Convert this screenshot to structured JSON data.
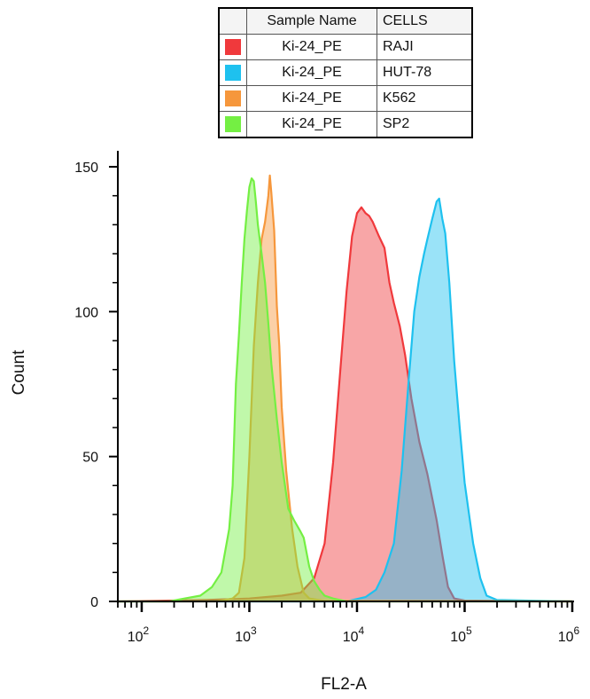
{
  "legend": {
    "header": {
      "sample": "Sample Name",
      "cells": "CELLS"
    },
    "rows": [
      {
        "sample": "Ki-24_PE",
        "cells": "RAJI",
        "color": "#f0393c"
      },
      {
        "sample": "Ki-24_PE",
        "cells": "HUT-78",
        "color": "#1ec1ef"
      },
      {
        "sample": "Ki-24_PE",
        "cells": "K562",
        "color": "#f6973c"
      },
      {
        "sample": "Ki-24_PE",
        "cells": "SP2",
        "color": "#74ef43"
      }
    ]
  },
  "chart_data": {
    "type": "area",
    "xlabel": "FL2-A",
    "ylabel": "Count",
    "x_scale": "log",
    "xlim": [
      60,
      1000000
    ],
    "ylim": [
      0,
      150
    ],
    "y_ticks": [
      "0",
      "50",
      "100",
      "150"
    ],
    "x_ticks": [
      {
        "base": "10",
        "exp": "2",
        "value": 100
      },
      {
        "base": "10",
        "exp": "3",
        "value": 1000
      },
      {
        "base": "10",
        "exp": "4",
        "value": 10000
      },
      {
        "base": "10",
        "exp": "5",
        "value": 100000
      },
      {
        "base": "10",
        "exp": "6",
        "value": 1000000
      }
    ],
    "series": [
      {
        "name": "RAJI",
        "color": "#f0393c",
        "points": [
          [
            60,
            0
          ],
          [
            400,
            0.5
          ],
          [
            1000,
            1
          ],
          [
            2000,
            2
          ],
          [
            3000,
            3
          ],
          [
            4000,
            8
          ],
          [
            5000,
            20
          ],
          [
            6000,
            48
          ],
          [
            7000,
            80
          ],
          [
            8000,
            107
          ],
          [
            9000,
            126
          ],
          [
            10000,
            134
          ],
          [
            11000,
            136
          ],
          [
            12000,
            134
          ],
          [
            13000,
            133
          ],
          [
            14000,
            131
          ],
          [
            16000,
            126
          ],
          [
            18000,
            122
          ],
          [
            20000,
            110
          ],
          [
            22000,
            103
          ],
          [
            25000,
            95
          ],
          [
            28000,
            85
          ],
          [
            32000,
            70
          ],
          [
            38000,
            55
          ],
          [
            45000,
            44
          ],
          [
            55000,
            28
          ],
          [
            62000,
            16
          ],
          [
            70000,
            5
          ],
          [
            80000,
            1
          ],
          [
            100000,
            0.3
          ],
          [
            1000000,
            0
          ]
        ]
      },
      {
        "name": "HUT-78",
        "color": "#1ec1ef",
        "points": [
          [
            60,
            0
          ],
          [
            8000,
            0
          ],
          [
            12000,
            1.5
          ],
          [
            15000,
            4
          ],
          [
            18000,
            10
          ],
          [
            22000,
            20
          ],
          [
            26000,
            45
          ],
          [
            30000,
            75
          ],
          [
            34000,
            100
          ],
          [
            38000,
            112
          ],
          [
            42000,
            120
          ],
          [
            45000,
            125
          ],
          [
            50000,
            132
          ],
          [
            55000,
            138
          ],
          [
            58000,
            139
          ],
          [
            62000,
            132
          ],
          [
            66000,
            127
          ],
          [
            72000,
            110
          ],
          [
            80000,
            83
          ],
          [
            90000,
            60
          ],
          [
            100000,
            41
          ],
          [
            110000,
            30
          ],
          [
            120000,
            20
          ],
          [
            140000,
            8
          ],
          [
            160000,
            2
          ],
          [
            200000,
            0.5
          ],
          [
            1000000,
            0
          ]
        ]
      },
      {
        "name": "K562",
        "color": "#f6973c",
        "points": [
          [
            60,
            0
          ],
          [
            500,
            0
          ],
          [
            700,
            1
          ],
          [
            800,
            3
          ],
          [
            900,
            15
          ],
          [
            1000,
            50
          ],
          [
            1100,
            88
          ],
          [
            1200,
            110
          ],
          [
            1300,
            125
          ],
          [
            1400,
            131
          ],
          [
            1500,
            140
          ],
          [
            1550,
            147
          ],
          [
            1600,
            141
          ],
          [
            1700,
            128
          ],
          [
            1800,
            102
          ],
          [
            1900,
            88
          ],
          [
            2000,
            67
          ],
          [
            2200,
            45
          ],
          [
            2500,
            25
          ],
          [
            2800,
            12
          ],
          [
            3200,
            3
          ],
          [
            3600,
            1
          ],
          [
            5000,
            0.2
          ],
          [
            1000000,
            0
          ]
        ]
      },
      {
        "name": "SP2",
        "color": "#74ef43",
        "points": [
          [
            60,
            0
          ],
          [
            180,
            0
          ],
          [
            250,
            1
          ],
          [
            350,
            2
          ],
          [
            450,
            5
          ],
          [
            550,
            10
          ],
          [
            650,
            25
          ],
          [
            700,
            40
          ],
          [
            750,
            75
          ],
          [
            800,
            92
          ],
          [
            850,
            110
          ],
          [
            900,
            125
          ],
          [
            950,
            135
          ],
          [
            1000,
            143
          ],
          [
            1050,
            146
          ],
          [
            1100,
            145
          ],
          [
            1150,
            138
          ],
          [
            1200,
            130
          ],
          [
            1300,
            120
          ],
          [
            1400,
            110
          ],
          [
            1500,
            96
          ],
          [
            1600,
            82
          ],
          [
            1800,
            63
          ],
          [
            2000,
            48
          ],
          [
            2300,
            32
          ],
          [
            2600,
            28
          ],
          [
            3000,
            24
          ],
          [
            3200,
            22
          ],
          [
            3600,
            12
          ],
          [
            4000,
            7
          ],
          [
            4500,
            4
          ],
          [
            5000,
            2
          ],
          [
            6000,
            1
          ],
          [
            8000,
            0
          ],
          [
            1000000,
            0
          ]
        ]
      }
    ]
  }
}
